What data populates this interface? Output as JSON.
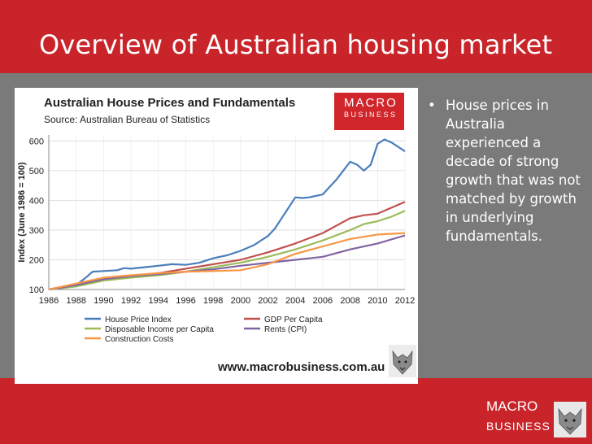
{
  "slide": {
    "title": "Overview of Australian housing market",
    "bullet": "House prices in Australia experienced a decade of strong growth that was not matched by growth in underlying fundamentals.",
    "footer_logo": {
      "line1": "MACRO",
      "line2": "BUSINESS"
    }
  },
  "chart_logo": {
    "line1": "MACRO",
    "line2": "BUSINESS",
    "line3": ""
  },
  "website": "www.macrobusiness.com.au",
  "colors": {
    "slide_red": "#c8242a",
    "content_grey": "#7a7a7a"
  },
  "chart_data": {
    "type": "line",
    "title": "Australian House Prices and Fundamentals",
    "subtitle": "Source: Australian Bureau of Statistics",
    "xlabel": "",
    "ylabel": "Index (June 1986 = 100)",
    "xlim": [
      1986,
      2012
    ],
    "ylim": [
      100,
      620
    ],
    "x_ticks": [
      "1986",
      "1988",
      "1990",
      "1992",
      "1994",
      "1996",
      "1998",
      "2000",
      "2002",
      "2004",
      "2006",
      "2008",
      "2010",
      "2012"
    ],
    "y_ticks": [
      "100",
      "200",
      "300",
      "400",
      "500",
      "600"
    ],
    "grid": true,
    "legend_position": "bottom",
    "series": [
      {
        "name": "House Price Index",
        "color": "#4a7ebb",
        "x": [
          1986,
          1987,
          1988,
          1988.7,
          1989.2,
          1990,
          1991,
          1991.5,
          1992,
          1993,
          1994,
          1995,
          1996,
          1997,
          1998,
          1999,
          2000,
          2001,
          2002,
          2002.5,
          2003,
          2003.5,
          2004,
          2004.5,
          2005,
          2006,
          2006.5,
          2007,
          2007.5,
          2008,
          2008.5,
          2009,
          2009.5,
          2010,
          2010.5,
          2011,
          2011.5,
          2012
        ],
        "y": [
          100,
          105,
          115,
          140,
          160,
          162,
          165,
          172,
          170,
          175,
          180,
          185,
          183,
          190,
          205,
          215,
          230,
          250,
          280,
          305,
          340,
          375,
          410,
          408,
          410,
          420,
          445,
          470,
          500,
          530,
          520,
          500,
          520,
          590,
          605,
          595,
          580,
          565
        ]
      },
      {
        "name": "GDP Per Capita",
        "color": "#c0504d",
        "x": [
          1986,
          1988,
          1990,
          1992,
          1994,
          1996,
          1998,
          2000,
          2002,
          2004,
          2006,
          2008,
          2009,
          2010,
          2011,
          2012
        ],
        "y": [
          100,
          118,
          135,
          145,
          155,
          170,
          185,
          200,
          225,
          255,
          290,
          340,
          350,
          355,
          375,
          395
        ]
      },
      {
        "name": "Disposable Income per Capita",
        "color": "#9bbb59",
        "x": [
          1986,
          1988,
          1990,
          1992,
          1994,
          1996,
          1998,
          2000,
          2002,
          2004,
          2006,
          2008,
          2009,
          2010,
          2011,
          2012
        ],
        "y": [
          100,
          110,
          130,
          140,
          148,
          160,
          175,
          190,
          210,
          235,
          265,
          300,
          320,
          330,
          345,
          365
        ]
      },
      {
        "name": "Rents (CPI)",
        "color": "#8064a2",
        "x": [
          1986,
          1988,
          1990,
          1992,
          1994,
          1996,
          1998,
          2000,
          2002,
          2004,
          2006,
          2008,
          2010,
          2012
        ],
        "y": [
          100,
          115,
          135,
          145,
          152,
          160,
          168,
          180,
          190,
          200,
          210,
          235,
          255,
          282
        ]
      },
      {
        "name": "Construction Costs",
        "color": "#f79646",
        "x": [
          1986,
          1988,
          1990,
          1992,
          1994,
          1996,
          1998,
          2000,
          2002,
          2004,
          2006,
          2008,
          2010,
          2012
        ],
        "y": [
          100,
          120,
          140,
          148,
          155,
          160,
          162,
          165,
          185,
          220,
          245,
          270,
          285,
          290
        ]
      }
    ]
  }
}
